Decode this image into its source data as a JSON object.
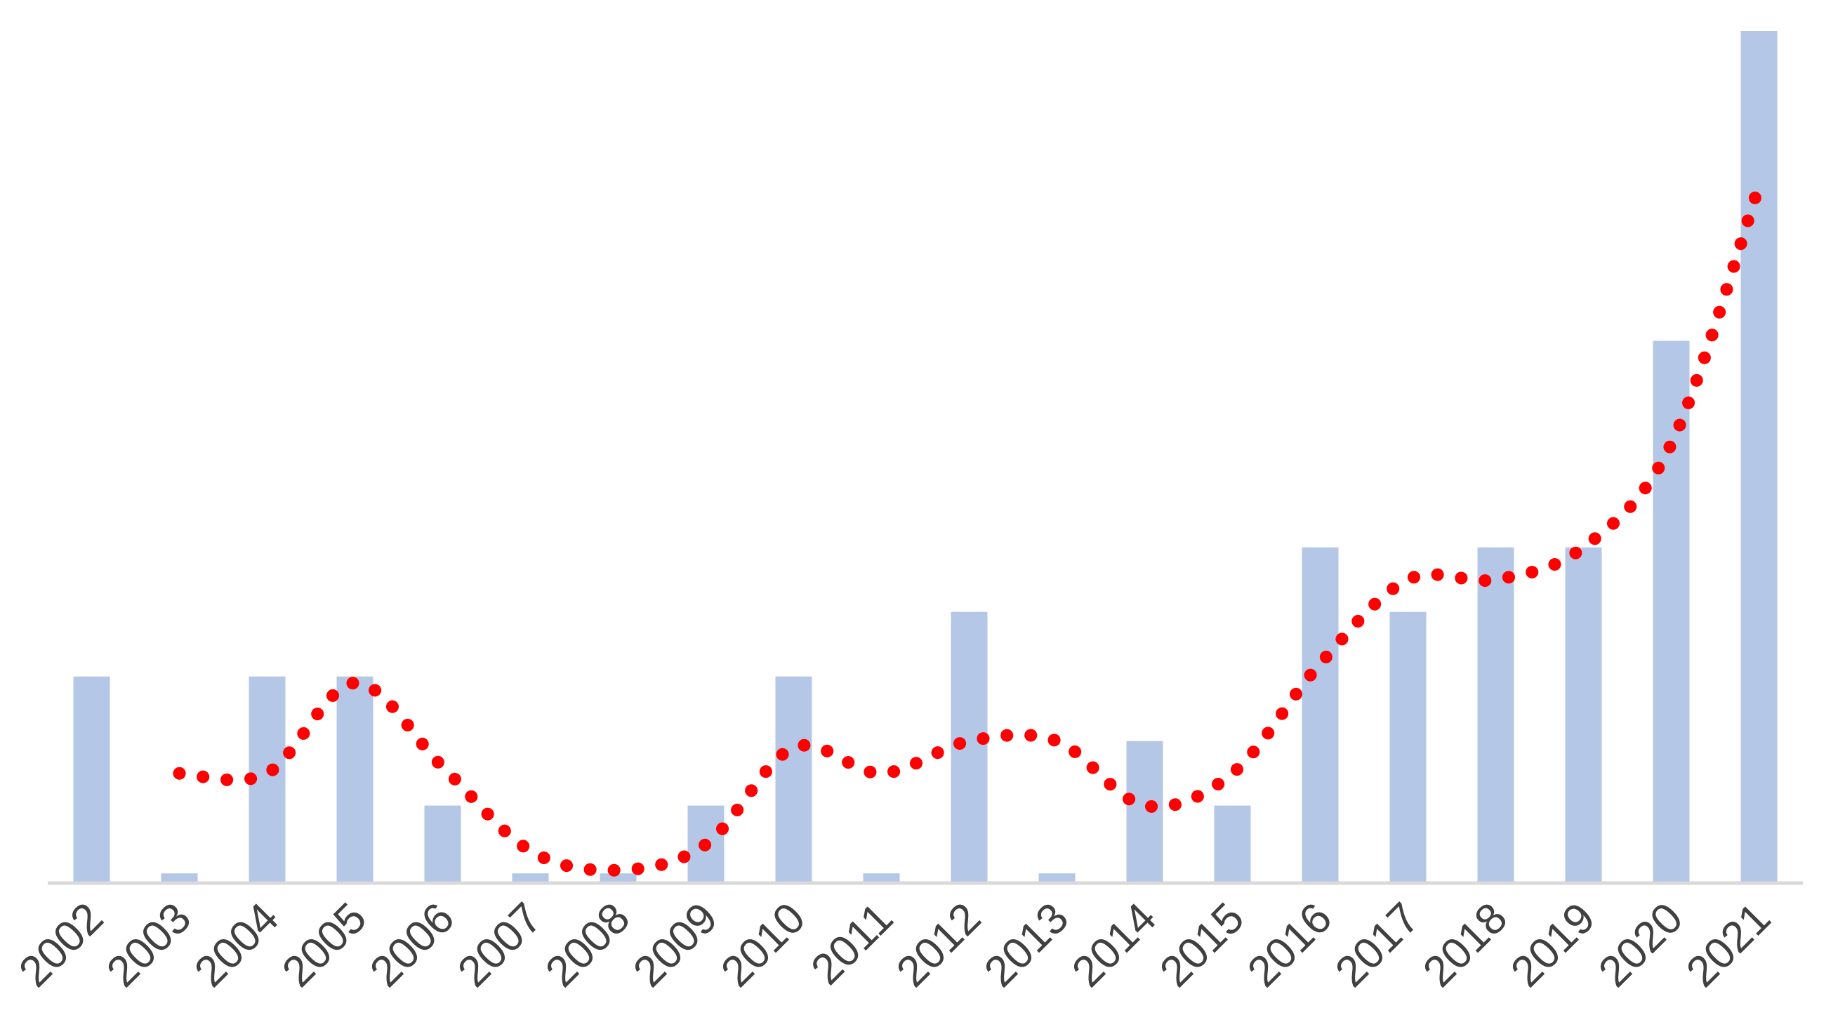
{
  "chart_data": {
    "type": "bar",
    "categories": [
      "2002",
      "2003",
      "2004",
      "2005",
      "2006",
      "2007",
      "2008",
      "2009",
      "2010",
      "2011",
      "2012",
      "2013",
      "2014",
      "2015",
      "2016",
      "2017",
      "2018",
      "2019",
      "2020",
      "2021"
    ],
    "series": [
      {
        "type": "bar",
        "values": [
          3.2,
          0.15,
          3.2,
          3.2,
          1.2,
          0.15,
          0.15,
          1.2,
          3.2,
          0.15,
          4.2,
          0.15,
          2.2,
          1.2,
          5.2,
          4.2,
          5.2,
          5.2,
          8.4,
          13.2
        ],
        "color": "#b4c7e7"
      },
      {
        "type": "line",
        "style": "dotted",
        "values": [
          null,
          1.7,
          1.7,
          3.1,
          1.8,
          0.5,
          0.2,
          0.6,
          2.1,
          1.7,
          2.2,
          2.2,
          1.2,
          1.7,
          3.4,
          4.7,
          4.7,
          5.2,
          6.8,
          10.8
        ],
        "color": "#ff0000"
      }
    ],
    "ylim": [
      0,
      13.2
    ],
    "grid": false,
    "legend": "none",
    "xlabel": "",
    "ylabel": "",
    "title": ""
  }
}
